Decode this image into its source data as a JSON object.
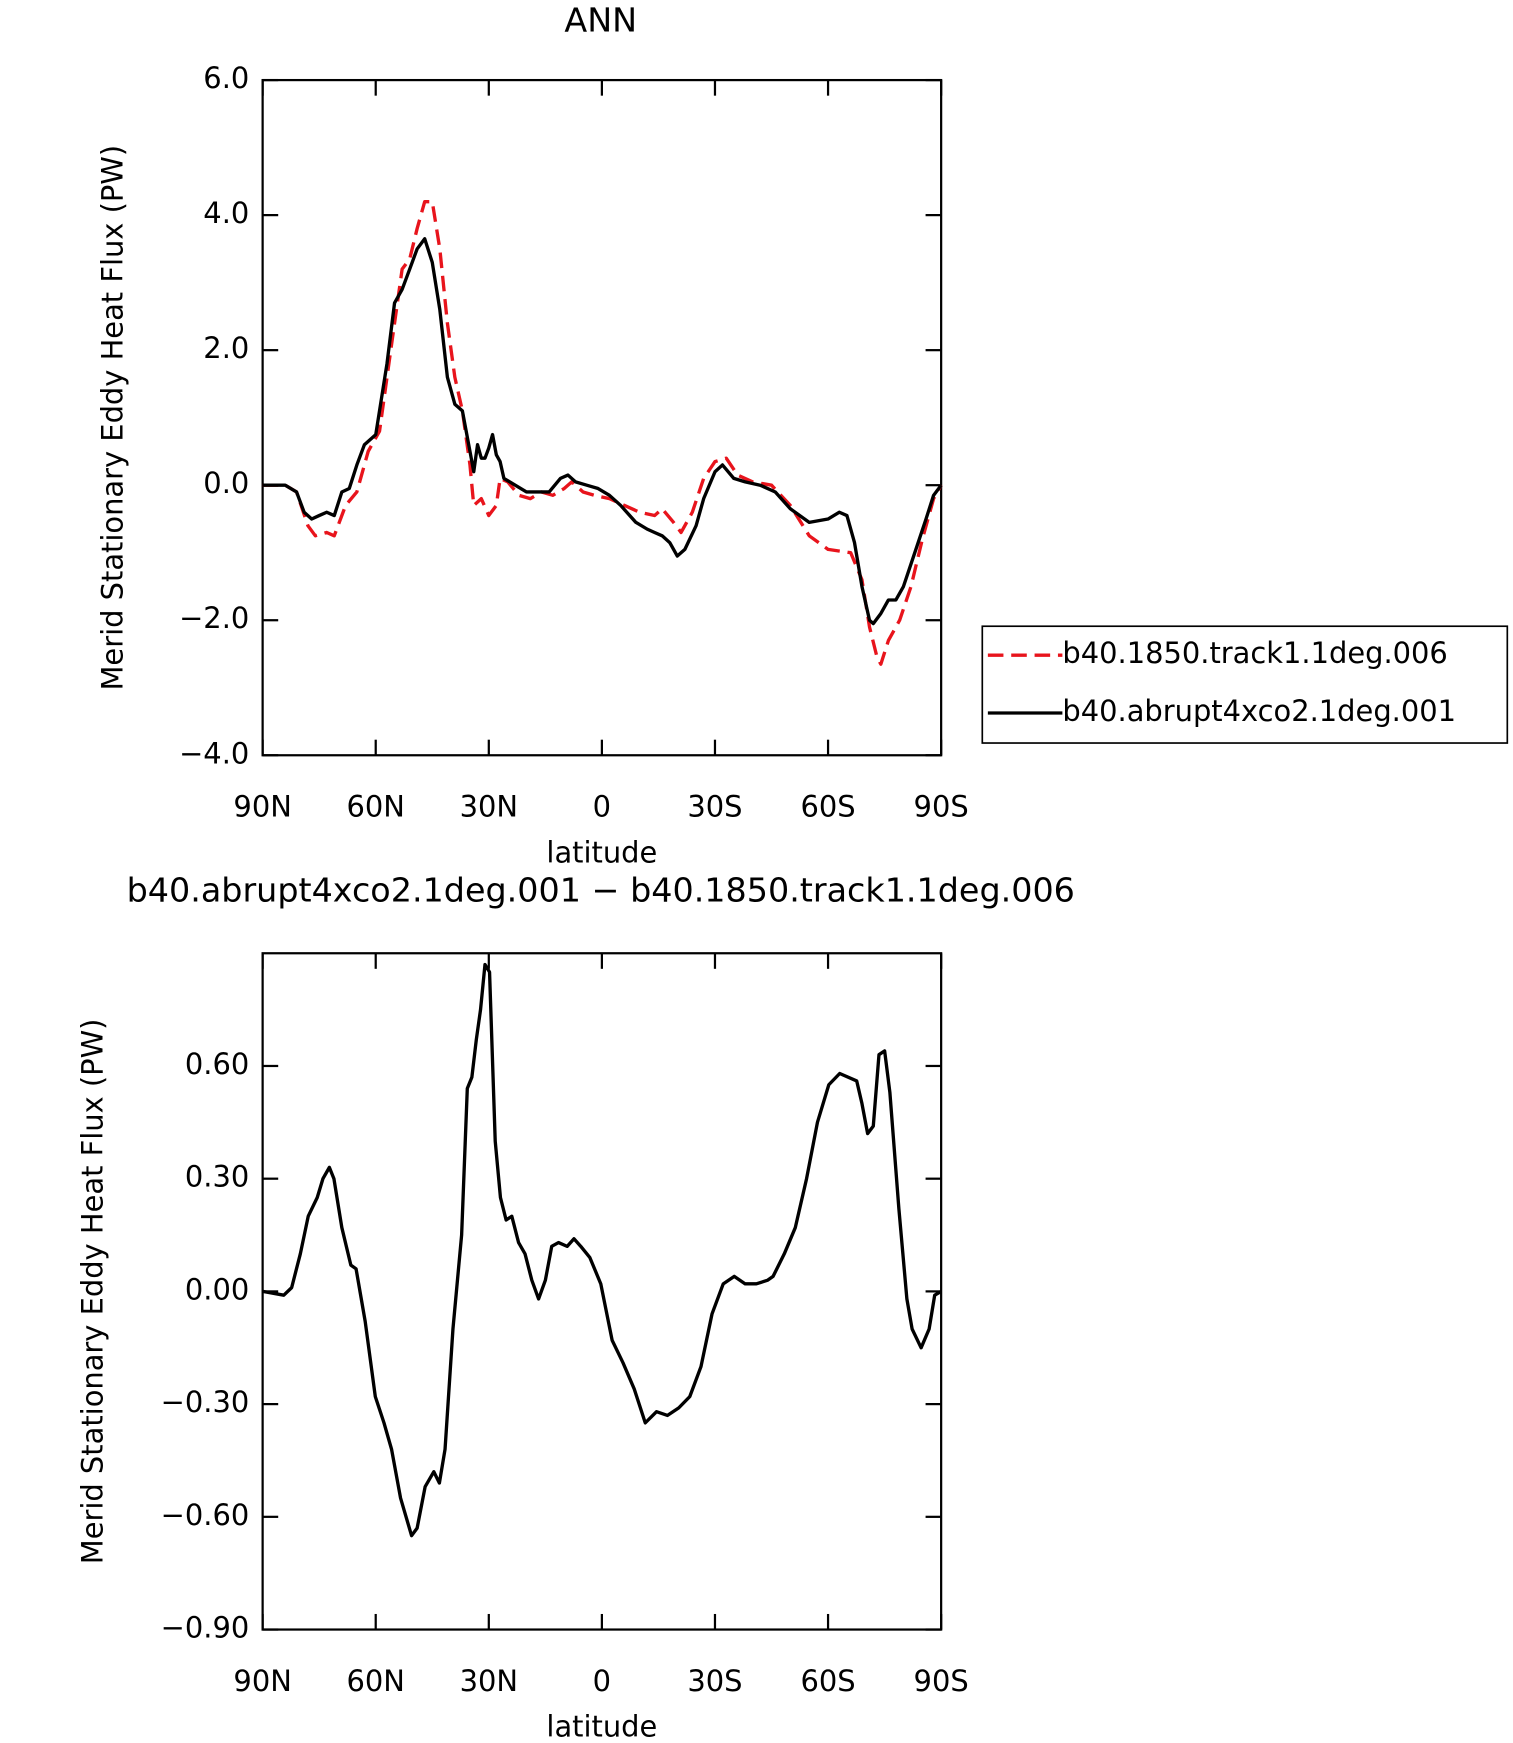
{
  "chart_data": [
    {
      "type": "line",
      "title": "ANN",
      "xlabel": "latitude",
      "ylabel": "Merid Stationary Eddy Heat Flux (PW)",
      "xlim": [
        90,
        -90
      ],
      "xticks": [
        {
          "value": 90,
          "label": "90N"
        },
        {
          "value": 60,
          "label": "60N"
        },
        {
          "value": 30,
          "label": "30N"
        },
        0,
        {
          "value": -30,
          "label": "30S"
        },
        {
          "value": -60,
          "label": "60S"
        },
        {
          "value": -90,
          "label": "90S"
        }
      ],
      "ylim": [
        -4,
        6
      ],
      "yticks": [
        {
          "value": -4,
          "label": "−4.0"
        },
        {
          "value": -2,
          "label": "−2.0"
        },
        {
          "value": 0,
          "label": "0.0"
        },
        {
          "value": 2,
          "label": "2.0"
        },
        {
          "value": 4,
          "label": "4.0"
        },
        {
          "value": 6,
          "label": "6.0"
        }
      ],
      "legend": "right",
      "series": [
        {
          "name": "b40.1850.track1.1deg.006",
          "color": "#e8141c",
          "dash": "dashed",
          "x": [
            90,
            84,
            81,
            78,
            76,
            73,
            71,
            68,
            65,
            62,
            59,
            56,
            53,
            51,
            49,
            47,
            45,
            43,
            41,
            39,
            37,
            35,
            34,
            32,
            30,
            28,
            27,
            25,
            22,
            19,
            16,
            13,
            10,
            8,
            5,
            2,
            -2,
            -6,
            -10,
            -14,
            -16,
            -19,
            -21,
            -24,
            -27,
            -30,
            -33,
            -36,
            -40,
            -45,
            -50,
            -55,
            -60,
            -66,
            -69,
            -71,
            -73,
            -74,
            -76,
            -79,
            -82,
            -85,
            -88,
            -90
          ],
          "values": [
            0,
            0,
            -0.1,
            -0.6,
            -0.75,
            -0.7,
            -0.75,
            -0.3,
            -0.1,
            0.5,
            0.8,
            2.0,
            3.2,
            3.35,
            3.8,
            4.2,
            4.2,
            3.5,
            2.4,
            1.6,
            1.1,
            0.3,
            -0.3,
            -0.2,
            -0.45,
            -0.3,
            0.1,
            0.05,
            -0.15,
            -0.2,
            -0.1,
            -0.15,
            -0.05,
            0.05,
            -0.1,
            -0.15,
            -0.2,
            -0.3,
            -0.4,
            -0.45,
            -0.35,
            -0.55,
            -0.7,
            -0.4,
            0.1,
            0.35,
            0.4,
            0.15,
            0.05,
            0,
            -0.3,
            -0.75,
            -0.95,
            -1.0,
            -1.4,
            -2.1,
            -2.55,
            -2.65,
            -2.3,
            -2.0,
            -1.5,
            -0.8,
            -0.2,
            0
          ]
        },
        {
          "name": "b40.abrupt4xco2.1deg.001",
          "color": "#000000",
          "dash": "solid",
          "x": [
            90,
            84,
            81,
            79,
            77,
            75,
            73,
            71,
            69,
            67,
            65,
            63,
            60,
            57,
            55,
            53,
            51,
            49,
            47,
            45,
            43,
            41,
            39,
            37,
            35,
            34,
            33,
            32,
            31,
            30,
            29,
            28,
            27,
            26,
            23,
            20,
            17,
            14,
            11,
            9,
            7,
            4,
            1,
            -2,
            -5,
            -9,
            -12,
            -14,
            -16,
            -18,
            -20,
            -22,
            -25,
            -27,
            -30,
            -32,
            -35,
            -38,
            -42,
            -46,
            -50,
            -55,
            -60,
            -63,
            -65,
            -67,
            -69,
            -71,
            -72,
            -74,
            -76,
            -78,
            -80,
            -83,
            -86,
            -88,
            -90
          ],
          "values": [
            0,
            0,
            -0.1,
            -0.4,
            -0.5,
            -0.45,
            -0.4,
            -0.45,
            -0.1,
            -0.05,
            0.3,
            0.6,
            0.75,
            1.8,
            2.7,
            2.9,
            3.2,
            3.5,
            3.65,
            3.3,
            2.6,
            1.6,
            1.2,
            1.1,
            0.5,
            0.2,
            0.6,
            0.4,
            0.4,
            0.55,
            0.75,
            0.45,
            0.35,
            0.1,
            0,
            -0.1,
            -0.1,
            -0.1,
            0.1,
            0.15,
            0.05,
            0,
            -0.05,
            -0.15,
            -0.3,
            -0.55,
            -0.65,
            -0.7,
            -0.75,
            -0.85,
            -1.05,
            -0.95,
            -0.6,
            -0.2,
            0.2,
            0.3,
            0.1,
            0.05,
            0,
            -0.1,
            -0.35,
            -0.55,
            -0.5,
            -0.4,
            -0.45,
            -0.85,
            -1.5,
            -2.0,
            -2.05,
            -1.9,
            -1.7,
            -1.7,
            -1.5,
            -1.0,
            -0.5,
            -0.15,
            0
          ]
        }
      ]
    },
    {
      "type": "line",
      "title": "b40.abrupt4xco2.1deg.001 − b40.1850.track1.1deg.006",
      "xlabel": "latitude",
      "ylabel": "Merid Stationary Eddy Heat Flux (PW)",
      "xlim": [
        90,
        -90
      ],
      "xticks": [
        {
          "value": 90,
          "label": "90N"
        },
        {
          "value": 60,
          "label": "60N"
        },
        {
          "value": 30,
          "label": "30N"
        },
        0,
        {
          "value": -30,
          "label": "30S"
        },
        {
          "value": -60,
          "label": "60S"
        },
        {
          "value": -90,
          "label": "90S"
        }
      ],
      "ylim": [
        -0.9,
        0.9
      ],
      "yticks": [
        {
          "value": -0.9,
          "label": "−0.90"
        },
        {
          "value": -0.6,
          "label": "−0.60"
        },
        {
          "value": -0.3,
          "label": "−0.30"
        },
        {
          "value": 0,
          "label": "0.00"
        },
        {
          "value": 0.3,
          "label": "0.30"
        },
        {
          "value": 0.6,
          "label": "0.60"
        }
      ],
      "series": [
        {
          "color": "#000000",
          "dash": "solid",
          "x": [
            90,
            84.4,
            82.3,
            80,
            77.9,
            75.5,
            74,
            72.3,
            71.1,
            69,
            66.6,
            65.2,
            62.8,
            60.1,
            57.8,
            55.8,
            53.4,
            50.5,
            49,
            46.9,
            44.6,
            43.1,
            41.6,
            39.5,
            37.2,
            35.7,
            34.5,
            33.3,
            32.2,
            31,
            29.8,
            28.3,
            26.9,
            25.4,
            23.9,
            22.1,
            20.4,
            18.6,
            16.8,
            15,
            13.3,
            11.5,
            9.2,
            7.4,
            5.6,
            3.2,
            0.3,
            -2.7,
            -5.6,
            -8.6,
            -11.5,
            -14.5,
            -17.4,
            -20.4,
            -23.3,
            -26.3,
            -29.2,
            -32.2,
            -35.1,
            -38,
            -41,
            -44,
            -45.4,
            -48.4,
            -51.3,
            -54.3,
            -57.2,
            -60.2,
            -63.1,
            -67.6,
            -69,
            -70.5,
            -72,
            -73.5,
            -75,
            -76.4,
            -78.8,
            -80.9,
            -82.3,
            -84.7,
            -86.8,
            -88.3,
            -90
          ],
          "values": [
            0,
            -0.01,
            0.01,
            0.1,
            0.2,
            0.25,
            0.3,
            0.33,
            0.3,
            0.17,
            0.07,
            0.06,
            -0.08,
            -0.28,
            -0.35,
            -0.42,
            -0.55,
            -0.65,
            -0.63,
            -0.52,
            -0.48,
            -0.51,
            -0.42,
            -0.1,
            0.15,
            0.54,
            0.57,
            0.67,
            0.75,
            0.87,
            0.85,
            0.4,
            0.25,
            0.19,
            0.2,
            0.13,
            0.1,
            0.03,
            -0.02,
            0.03,
            0.12,
            0.13,
            0.12,
            0.14,
            0.12,
            0.09,
            0.02,
            -0.13,
            -0.19,
            -0.26,
            -0.35,
            -0.32,
            -0.33,
            -0.31,
            -0.28,
            -0.2,
            -0.06,
            0.02,
            0.04,
            0.02,
            0.02,
            0.03,
            0.04,
            0.1,
            0.17,
            0.3,
            0.45,
            0.55,
            0.58,
            0.56,
            0.5,
            0.42,
            0.44,
            0.63,
            0.64,
            0.53,
            0.22,
            -0.02,
            -0.1,
            -0.15,
            -0.1,
            -0.01,
            0
          ]
        }
      ]
    }
  ]
}
